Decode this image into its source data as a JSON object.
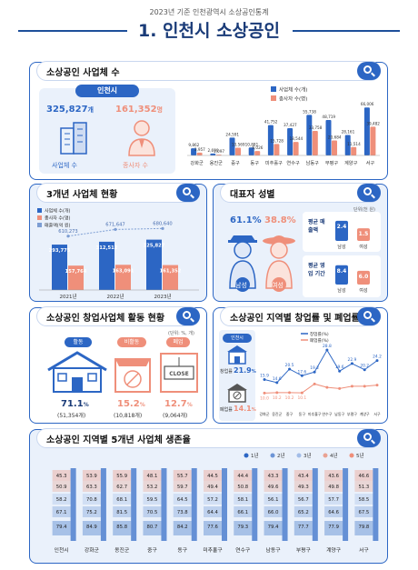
{
  "header": {
    "supertitle": "2023년 기준 인천광역시 소상공인통계",
    "title": "1. 인천시 소상공인"
  },
  "sections": {
    "businesses": "소상공인 사업체 수",
    "trend": "3개년 사업체 현황",
    "gender": "대표자 성별",
    "activity": "소상공인 창업사업체 활동 현황",
    "regional": "소상공인 지역별 창업률 및 폐업률",
    "survival": "소상공인 지역별 5개년 사업체 생존율"
  },
  "colors": {
    "blue": "#2c66c4",
    "orange": "#ef8f7a",
    "panel": "#eaf1fb",
    "navy": "#1a3b78"
  },
  "overview": {
    "city": "인천시",
    "business_count": "325,827",
    "business_unit": "개",
    "business_label": "사업체 수",
    "employee_count": "161,352",
    "employee_unit": "명",
    "employee_label": "종사자 수"
  },
  "gender": {
    "male_pct": "61.1%",
    "female_pct": "38.8%",
    "male": "남성",
    "female": "여성",
    "unit": "단위(천 원)",
    "revenue_title": "평균 매출액",
    "period_title": "평균 영업 기간",
    "revenue_male": "2.4",
    "revenue_female": "1.5",
    "period_male": "8.4",
    "period_female": "6.0",
    "axis_male": "남성",
    "axis_female": "여성",
    "revenue_bars": [
      2.4,
      1.5
    ],
    "period_bars": [
      8.4,
      6.0
    ]
  },
  "activity": {
    "unit": "(단위: %, 개)",
    "items": [
      {
        "status": "활동",
        "pct": "71.1",
        "count": "(51,354개)",
        "color": "#2c66c4"
      },
      {
        "status": "비활동",
        "pct": "15.2",
        "count": "(10,818개)",
        "color": "#ef8f7a"
      },
      {
        "status": "폐업",
        "pct": "12.7",
        "count": "(9,064개)",
        "color": "#ef8f7a"
      }
    ],
    "pct_suffix": "%",
    "close_sign": "CLOSE"
  },
  "regional_info": {
    "city": "인천시",
    "startup_label": "창업률",
    "startup_value": "21.9",
    "closure_label": "폐업률",
    "closure_value": "14.1",
    "pct_suffix": "%"
  },
  "chart_data": [
    {
      "type": "bar",
      "title": "소상공인 사업체 수",
      "categories": [
        "강화군",
        "옹진군",
        "중구",
        "동구",
        "미추홀구",
        "연수구",
        "남동구",
        "부평구",
        "계양구",
        "서구"
      ],
      "series": [
        {
          "name": "사업체 수(개)",
          "color": "#2c66c4",
          "values": [
            9862,
            2690,
            24591,
            10881,
            41752,
            37427,
            55738,
            48719,
            28161,
            66006
          ],
          "labels": [
            "9,862",
            "2,690",
            "24,591",
            "10,881",
            "41,752",
            "37,427",
            "55,738",
            "48,719",
            "28,161",
            "66,006"
          ]
        },
        {
          "name": "종사자 수(명)",
          "color": "#ef8f7a",
          "values": [
            3957,
            1097,
            10569,
            6026,
            15728,
            18544,
            33758,
            20684,
            11514,
            39482
          ],
          "labels": [
            "3,957",
            "1,097",
            "10,569",
            "6,026",
            "15,728",
            "18,544",
            "33,758",
            "20,684",
            "11,514",
            "39,482"
          ]
        }
      ]
    },
    {
      "type": "bar",
      "title": "3개년 사업체 현황",
      "categories": [
        "2021년",
        "2022년",
        "2023년"
      ],
      "series": [
        {
          "name": "사업체 수(개)",
          "type": "bar",
          "color": "#2c66c4",
          "values": [
            293775,
            312512,
            325827
          ],
          "labels": [
            "293,775",
            "312,512",
            "325,827"
          ]
        },
        {
          "name": "종사자 수(명)",
          "type": "bar",
          "color": "#ef8f7a",
          "values": [
            157764,
            163091,
            161352
          ],
          "labels": [
            "157,764",
            "163,091",
            "161,352"
          ]
        },
        {
          "name": "매출액(억 원)",
          "type": "line",
          "color": "#7d9ed3",
          "values": [
            610273,
            671647,
            680640
          ],
          "labels": [
            "610,273",
            "671,647",
            "680,640"
          ]
        }
      ]
    },
    {
      "type": "line",
      "title": "소상공인 지역별 창업률 및 폐업률",
      "categories": [
        "강화군",
        "옹진군",
        "중구",
        "동구",
        "미추홀구",
        "연수구",
        "남동구",
        "부평구",
        "계양구",
        "서구"
      ],
      "series": [
        {
          "name": "창업률(%)",
          "color": "#2c66c4",
          "values": [
            15.9,
            14.6,
            20.5,
            17.6,
            19.2,
            28.8,
            19.6,
            22.9,
            20.2,
            24.2
          ],
          "labels": [
            "15.9",
            "14.6",
            "20.5",
            "17.6",
            "19.2",
            "28.8",
            "19.6",
            "22.9",
            "20.2",
            "24.2"
          ]
        },
        {
          "name": "폐업률(%)",
          "color": "#ef8f7a",
          "values": [
            10.0,
            10.2,
            10.2,
            10.1,
            14.0,
            12.5,
            12.0,
            13.0,
            13.0,
            13.5
          ],
          "labels": [
            "10.0",
            "10.2",
            "10.2",
            "10.1",
            "",
            "",
            "",
            "",
            "",
            ""
          ]
        }
      ]
    },
    {
      "type": "table",
      "title": "소상공인 지역별 5개년 사업체 생존율",
      "legend": [
        "1년",
        "2년",
        "3년",
        "4년",
        "5년"
      ],
      "legend_colors": [
        "#2c66c4",
        "#6d95d6",
        "#a3bde8",
        "#e9a293",
        "#ef8f7a"
      ],
      "columns": [
        "인천시",
        "강화군",
        "옹진군",
        "중구",
        "동구",
        "미추홀구",
        "연수구",
        "남동구",
        "부평구",
        "계양구",
        "서구"
      ],
      "rows": [
        [
          "45.3",
          "53.9",
          "55.9",
          "48.1",
          "55.7",
          "44.5",
          "44.4",
          "43.3",
          "43.4",
          "43.6",
          "46.6"
        ],
        [
          "50.9",
          "63.3",
          "62.7",
          "53.2",
          "59.7",
          "49.4",
          "50.8",
          "49.6",
          "49.3",
          "49.8",
          "51.3"
        ],
        [
          "58.2",
          "70.8",
          "68.1",
          "59.5",
          "64.5",
          "57.2",
          "58.1",
          "56.1",
          "56.7",
          "57.7",
          "58.5"
        ],
        [
          "67.1",
          "75.2",
          "81.5",
          "70.5",
          "73.8",
          "64.4",
          "66.1",
          "66.0",
          "65.2",
          "64.6",
          "67.5"
        ],
        [
          "79.4",
          "84.9",
          "85.8",
          "80.7",
          "84.2",
          "77.6",
          "79.3",
          "79.4",
          "77.7",
          "77.9",
          "79.8"
        ]
      ]
    }
  ]
}
